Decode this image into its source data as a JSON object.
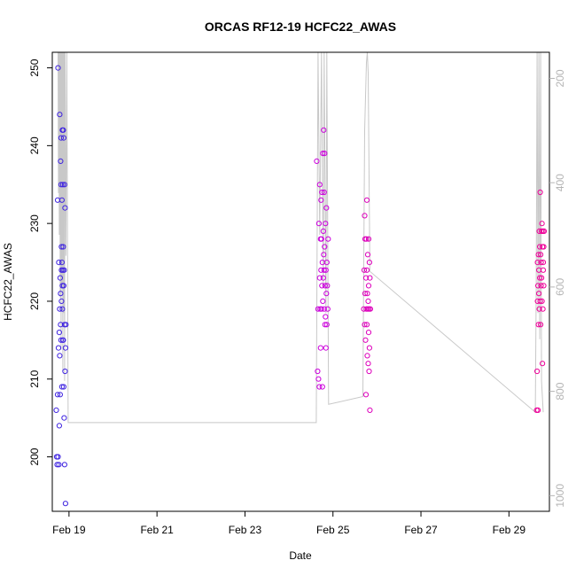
{
  "chart_data": {
    "type": "scatter",
    "title": "ORCAS RF12-19 HCFC22_AWAS",
    "xlabel": "Date",
    "ylabel": "HCFC22_AWAS",
    "x_unit": "days since Feb 18",
    "xlim": [
      0.62,
      11.92
    ],
    "ylim": [
      193,
      252
    ],
    "x_ticks": [
      {
        "value": 1,
        "label": "Feb 19"
      },
      {
        "value": 3,
        "label": "Feb 21"
      },
      {
        "value": 5,
        "label": "Feb 23"
      },
      {
        "value": 7,
        "label": "Feb 25"
      },
      {
        "value": 9,
        "label": "Feb 27"
      },
      {
        "value": 11,
        "label": "Feb 29"
      }
    ],
    "y_ticks": [
      200,
      210,
      220,
      230,
      240,
      250
    ],
    "right_axis": {
      "label": "",
      "lim": [
        1030,
        150
      ],
      "ticks": [
        200,
        400,
        600,
        800,
        1000
      ],
      "color": "#b4b4b4"
    },
    "grid": false,
    "series": [
      {
        "color": "#3f24e0",
        "points": [
          [
            0.71,
            206
          ],
          [
            0.72,
            200
          ],
          [
            0.73,
            199
          ],
          [
            0.74,
            233
          ],
          [
            0.74,
            208
          ],
          [
            0.75,
            250
          ],
          [
            0.75,
            200
          ],
          [
            0.76,
            214
          ],
          [
            0.77,
            225
          ],
          [
            0.77,
            199
          ],
          [
            0.78,
            204
          ],
          [
            0.78,
            216
          ],
          [
            0.79,
            244
          ],
          [
            0.79,
            219
          ],
          [
            0.79,
            213
          ],
          [
            0.8,
            223
          ],
          [
            0.8,
            208
          ],
          [
            0.81,
            238
          ],
          [
            0.81,
            221
          ],
          [
            0.81,
            217
          ],
          [
            0.82,
            241
          ],
          [
            0.82,
            235
          ],
          [
            0.82,
            215
          ],
          [
            0.83,
            227
          ],
          [
            0.83,
            224
          ],
          [
            0.83,
            220
          ],
          [
            0.84,
            233
          ],
          [
            0.84,
            225
          ],
          [
            0.84,
            209
          ],
          [
            0.85,
            242
          ],
          [
            0.85,
            222
          ],
          [
            0.85,
            219
          ],
          [
            0.86,
            235
          ],
          [
            0.86,
            224
          ],
          [
            0.86,
            215
          ],
          [
            0.87,
            242
          ],
          [
            0.87,
            227
          ],
          [
            0.87,
            215
          ],
          [
            0.88,
            241
          ],
          [
            0.88,
            222
          ],
          [
            0.88,
            209
          ],
          [
            0.89,
            224
          ],
          [
            0.89,
            205
          ],
          [
            0.9,
            235
          ],
          [
            0.9,
            217
          ],
          [
            0.9,
            199
          ],
          [
            0.91,
            232
          ],
          [
            0.91,
            211
          ],
          [
            0.92,
            214
          ],
          [
            0.92,
            194
          ],
          [
            0.93,
            217
          ]
        ]
      },
      {
        "color": "#cc00dd",
        "points": [
          [
            6.63,
            238
          ],
          [
            6.65,
            211
          ],
          [
            6.66,
            219
          ],
          [
            6.67,
            210
          ],
          [
            6.68,
            230
          ],
          [
            6.69,
            209
          ],
          [
            6.7,
            235
          ],
          [
            6.7,
            223
          ],
          [
            6.71,
            219
          ],
          [
            6.72,
            228
          ],
          [
            6.72,
            214
          ],
          [
            6.73,
            233
          ],
          [
            6.73,
            224
          ],
          [
            6.74,
            228
          ],
          [
            6.74,
            219
          ],
          [
            6.75,
            234
          ],
          [
            6.75,
            222
          ],
          [
            6.76,
            225
          ],
          [
            6.76,
            209
          ],
          [
            6.77,
            239
          ],
          [
            6.77,
            220
          ],
          [
            6.78,
            229
          ],
          [
            6.78,
            223
          ],
          [
            6.79,
            242
          ],
          [
            6.79,
            226
          ],
          [
            6.8,
            234
          ],
          [
            6.8,
            219
          ],
          [
            6.8,
            224
          ],
          [
            6.81,
            239
          ],
          [
            6.81,
            227
          ],
          [
            6.82,
            222
          ],
          [
            6.82,
            217
          ],
          [
            6.83,
            230
          ],
          [
            6.83,
            218
          ],
          [
            6.84,
            224
          ],
          [
            6.84,
            214
          ],
          [
            6.85,
            232
          ],
          [
            6.85,
            221
          ],
          [
            6.86,
            225
          ],
          [
            6.86,
            217
          ],
          [
            6.87,
            222
          ],
          [
            6.88,
            219
          ],
          [
            6.89,
            228
          ]
        ]
      },
      {
        "color": "#dd00bb",
        "points": [
          [
            7.7,
            219
          ],
          [
            7.71,
            224
          ],
          [
            7.72,
            231
          ],
          [
            7.72,
            217
          ],
          [
            7.73,
            228
          ],
          [
            7.73,
            221
          ],
          [
            7.74,
            215
          ],
          [
            7.75,
            223
          ],
          [
            7.75,
            208
          ],
          [
            7.76,
            219
          ],
          [
            7.76,
            228
          ],
          [
            7.77,
            233
          ],
          [
            7.77,
            224
          ],
          [
            7.77,
            217
          ],
          [
            7.78,
            221
          ],
          [
            7.78,
            213
          ],
          [
            7.79,
            219
          ],
          [
            7.79,
            226
          ],
          [
            7.8,
            220
          ],
          [
            7.8,
            212
          ],
          [
            7.81,
            228
          ],
          [
            7.81,
            216
          ],
          [
            7.81,
            222
          ],
          [
            7.82,
            219
          ],
          [
            7.82,
            211
          ],
          [
            7.83,
            225
          ],
          [
            7.83,
            214
          ],
          [
            7.84,
            206
          ],
          [
            7.84,
            223
          ],
          [
            7.85,
            219
          ]
        ]
      },
      {
        "color": "#ee0099",
        "points": [
          [
            11.63,
            206
          ],
          [
            11.64,
            211
          ],
          [
            11.65,
            220
          ],
          [
            11.65,
            225
          ],
          [
            11.66,
            206
          ],
          [
            11.66,
            222
          ],
          [
            11.67,
            226
          ],
          [
            11.67,
            217
          ],
          [
            11.68,
            224
          ],
          [
            11.68,
            221
          ],
          [
            11.69,
            229
          ],
          [
            11.69,
            219
          ],
          [
            11.7,
            227
          ],
          [
            11.7,
            223
          ],
          [
            11.71,
            234
          ],
          [
            11.71,
            220
          ],
          [
            11.72,
            226
          ],
          [
            11.72,
            217
          ],
          [
            11.73,
            225
          ],
          [
            11.73,
            222
          ],
          [
            11.74,
            229
          ],
          [
            11.74,
            223
          ],
          [
            11.75,
            230
          ],
          [
            11.75,
            220
          ],
          [
            11.76,
            227
          ],
          [
            11.76,
            212
          ],
          [
            11.77,
            229
          ],
          [
            11.77,
            219
          ],
          [
            11.78,
            224
          ],
          [
            11.78,
            225
          ],
          [
            11.79,
            227
          ],
          [
            11.79,
            222
          ],
          [
            11.8,
            229
          ]
        ]
      },
      {
        "line": true,
        "axis": "right",
        "color": "#c8c8c8",
        "points": [
          [
            0.75,
            150
          ],
          [
            0.76,
            420
          ],
          [
            0.77,
            150
          ],
          [
            0.78,
            500
          ],
          [
            0.79,
            150
          ],
          [
            0.8,
            620
          ],
          [
            0.81,
            150
          ],
          [
            0.82,
            720
          ],
          [
            0.83,
            150
          ],
          [
            0.84,
            600
          ],
          [
            0.85,
            150
          ],
          [
            0.86,
            760
          ],
          [
            0.87,
            150
          ],
          [
            0.88,
            650
          ],
          [
            0.89,
            150
          ],
          [
            0.9,
            780
          ],
          [
            0.91,
            150
          ],
          [
            0.93,
            540
          ],
          [
            0.95,
            150
          ],
          [
            0.98,
            860
          ],
          [
            6.62,
            860
          ],
          [
            6.66,
            150
          ],
          [
            6.7,
            500
          ],
          [
            6.74,
            150
          ],
          [
            6.78,
            600
          ],
          [
            6.8,
            150
          ],
          [
            6.84,
            650
          ],
          [
            6.86,
            150
          ],
          [
            6.9,
            825
          ],
          [
            7.68,
            810
          ],
          [
            7.72,
            300
          ],
          [
            7.76,
            170
          ],
          [
            7.78,
            150
          ],
          [
            7.8,
            190
          ],
          [
            7.84,
            570
          ],
          [
            11.6,
            840
          ],
          [
            11.62,
            600
          ],
          [
            11.64,
            150
          ],
          [
            11.66,
            650
          ],
          [
            11.68,
            150
          ],
          [
            11.7,
            700
          ],
          [
            11.72,
            150
          ],
          [
            11.74,
            780
          ],
          [
            11.78,
            840
          ]
        ]
      }
    ]
  }
}
